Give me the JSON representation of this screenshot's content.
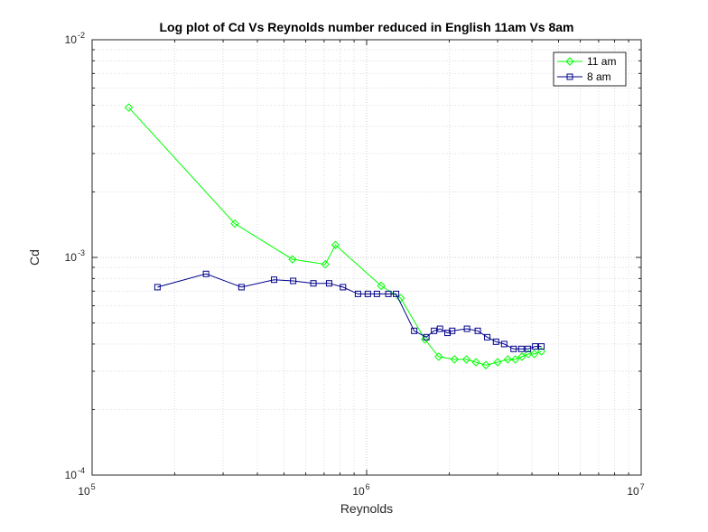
{
  "chart_data": {
    "type": "line",
    "title": "Log plot of Cd Vs Reynolds number reduced in English 11am Vs 8am",
    "xlabel": "Reynolds",
    "ylabel": "Cd",
    "xscale": "log",
    "yscale": "log",
    "xlim": [
      100000,
      10000000
    ],
    "ylim": [
      0.0001,
      0.01
    ],
    "grid": true,
    "minor_grid": true,
    "legend_position": "top-right",
    "xticks": [
      {
        "base": "10",
        "exp": "5"
      },
      {
        "base": "10",
        "exp": "6"
      },
      {
        "base": "10",
        "exp": "7"
      }
    ],
    "yticks": [
      {
        "base": "10",
        "exp": "-4"
      },
      {
        "base": "10",
        "exp": "-3"
      },
      {
        "base": "10",
        "exp": "-2"
      }
    ],
    "series": [
      {
        "name": "11 am",
        "color": "#00ff00",
        "marker": "diamond",
        "x": [
          136000,
          331000,
          537000,
          707000,
          770000,
          1130000,
          1330000,
          1630000,
          1830000,
          2090000,
          2310000,
          2500000,
          2720000,
          3000000,
          3270000,
          3480000,
          3680000,
          3880000,
          4080000,
          4330000
        ],
        "y": [
          0.00488,
          0.00143,
          0.00098,
          0.00093,
          0.00114,
          0.00074,
          0.00065,
          0.00042,
          0.00035,
          0.00034,
          0.00034,
          0.00033,
          0.00032,
          0.00033,
          0.00034,
          0.00034,
          0.00035,
          0.00036,
          0.00036,
          0.00037
        ]
      },
      {
        "name": "8 am",
        "color": "#00008b",
        "marker": "square",
        "x": [
          173000,
          260000,
          350000,
          460000,
          540000,
          640000,
          730000,
          820000,
          930000,
          1010000,
          1090000,
          1200000,
          1280000,
          1490000,
          1650000,
          1760000,
          1850000,
          1970000,
          2050000,
          2320000,
          2540000,
          2750000,
          2960000,
          3170000,
          3430000,
          3660000,
          3870000,
          4110000,
          4330000
        ],
        "y": [
          0.00073,
          0.00084,
          0.00073,
          0.00079,
          0.00078,
          0.00076,
          0.00076,
          0.00073,
          0.00068,
          0.00068,
          0.00068,
          0.00068,
          0.00068,
          0.00046,
          0.00043,
          0.00046,
          0.00047,
          0.00045,
          0.00046,
          0.00047,
          0.00046,
          0.00043,
          0.00041,
          0.0004,
          0.00038,
          0.00038,
          0.00038,
          0.00039,
          0.00039
        ]
      }
    ]
  }
}
